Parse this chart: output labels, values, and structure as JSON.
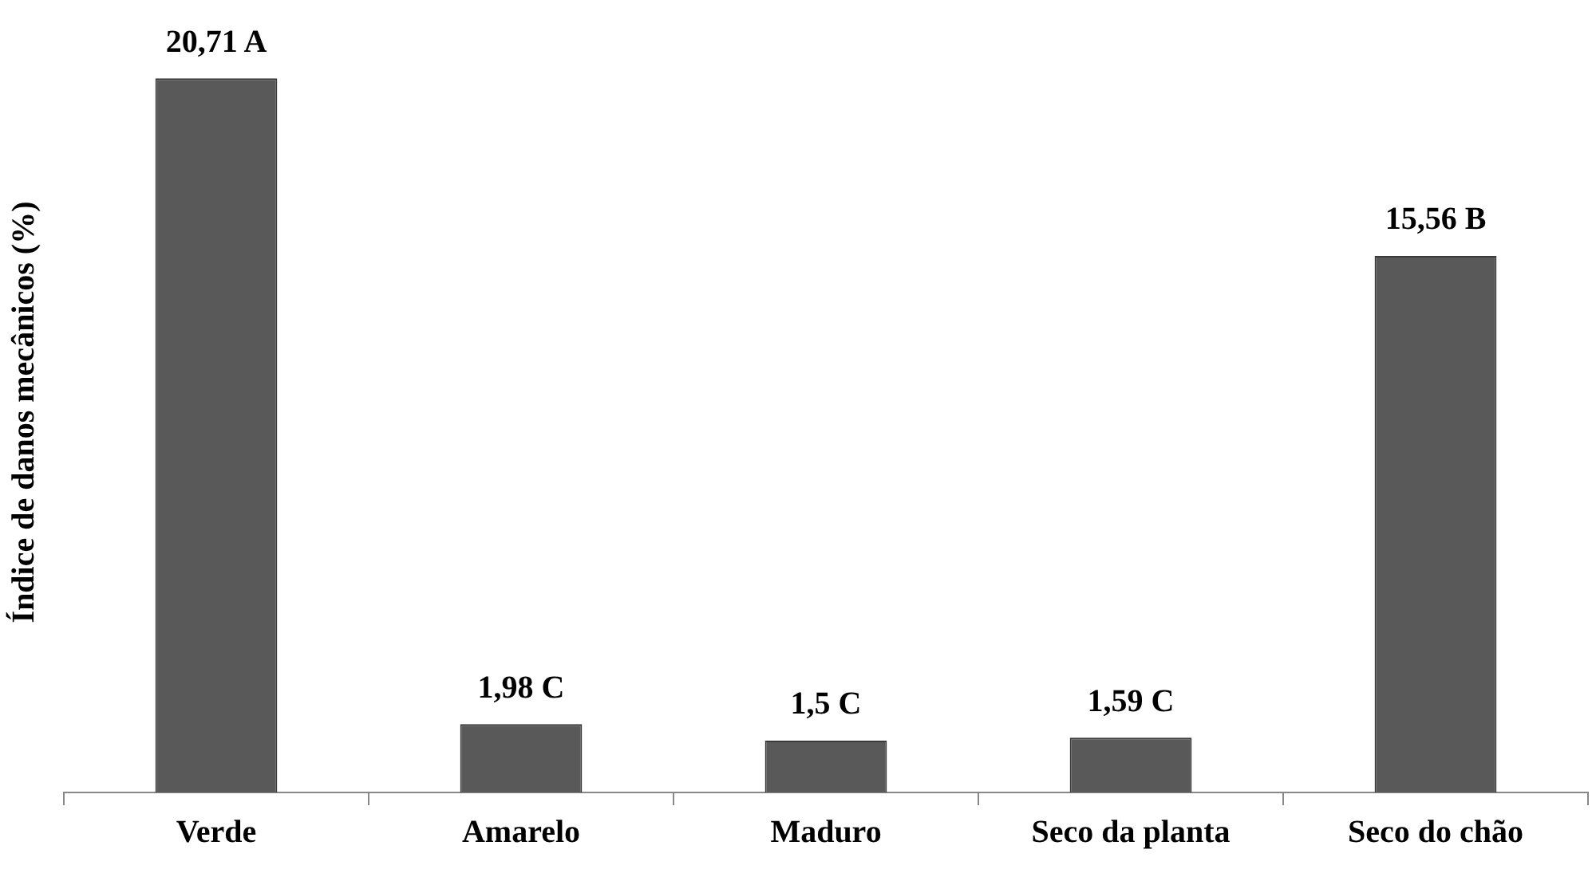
{
  "chart_data": {
    "type": "bar",
    "ylabel": "Índice de danos mecânicos (%)",
    "categories": [
      "Verde",
      "Amarelo",
      "Maduro",
      "Seco da planta",
      "Seco do chão"
    ],
    "values": [
      20.71,
      1.98,
      1.5,
      1.59,
      15.56
    ],
    "value_labels": [
      "20,71 A",
      "1,98 C",
      "1,5 C",
      "1,59 C",
      "15,56 B"
    ],
    "color": "#595959",
    "grid": false,
    "legend": false
  }
}
